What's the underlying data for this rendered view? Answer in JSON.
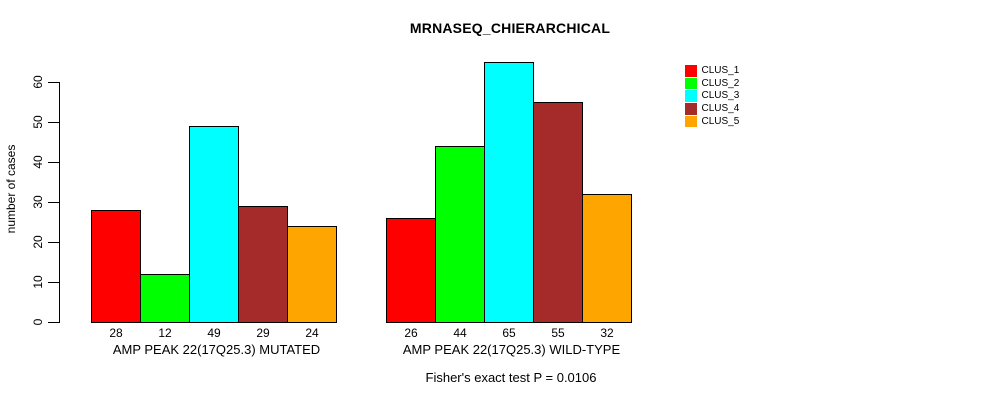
{
  "chart_data": {
    "type": "bar",
    "title": "MRNASEQ_CHIERARCHICAL",
    "xlabel": "",
    "ylabel": "number of cases",
    "ylim": [
      0,
      65
    ],
    "yticks": [
      0,
      10,
      20,
      30,
      40,
      50,
      60
    ],
    "grid": false,
    "bar_value_labels": true,
    "categories": [
      "AMP PEAK 22(17Q25.3) MUTATED",
      "AMP PEAK 22(17Q25.3) WILD-TYPE"
    ],
    "series": [
      {
        "name": "CLUS_1",
        "color": "#ff0000",
        "values": [
          28,
          26
        ]
      },
      {
        "name": "CLUS_2",
        "color": "#00ff00",
        "values": [
          12,
          44
        ]
      },
      {
        "name": "CLUS_3",
        "color": "#00ffff",
        "values": [
          49,
          65
        ]
      },
      {
        "name": "CLUS_4",
        "color": "#a52a2a",
        "values": [
          29,
          55
        ]
      },
      {
        "name": "CLUS_5",
        "color": "#ffa500",
        "values": [
          24,
          32
        ]
      }
    ],
    "legend": {
      "position": "top-right",
      "entries": [
        "CLUS_1",
        "CLUS_2",
        "CLUS_3",
        "CLUS_4",
        "CLUS_5"
      ]
    },
    "annotation": "Fisher's exact test P = 0.0106"
  }
}
